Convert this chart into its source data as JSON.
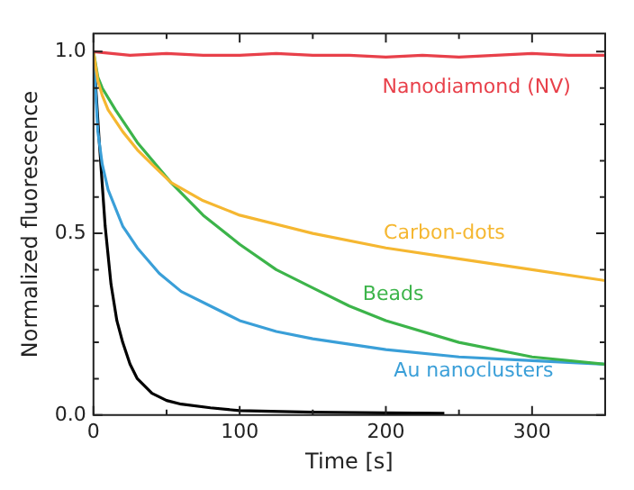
{
  "chart_data": {
    "type": "line",
    "xlabel": "Time [s]",
    "ylabel": "Normalized fluorescence",
    "xlim": [
      0,
      350
    ],
    "ylim": [
      0,
      1.05
    ],
    "xticks": [
      0,
      {
        "value": 50,
        "label": null
      },
      100,
      {
        "value": 150,
        "label": null
      },
      200,
      {
        "value": 250,
        "label": null
      },
      300
    ],
    "yticks": [
      {
        "value": 0,
        "label": "0.0"
      },
      {
        "value": 0.1,
        "label": null
      },
      {
        "value": 0.2,
        "label": null
      },
      {
        "value": 0.3,
        "label": null
      },
      {
        "value": 0.4,
        "label": null
      },
      0.5,
      {
        "value": 0.6,
        "label": null
      },
      {
        "value": 0.7,
        "label": null
      },
      {
        "value": 0.8,
        "label": null
      },
      {
        "value": 0.9,
        "label": null
      },
      {
        "value": 1,
        "label": "1.0"
      }
    ],
    "grid": false,
    "legend": false,
    "marker": "none",
    "line_style": "solid",
    "series": [
      {
        "name": "Nanodiamond (NV)",
        "color": "#e8404a",
        "x": [
          0,
          25,
          50,
          75,
          100,
          125,
          150,
          175,
          200,
          225,
          250,
          275,
          300,
          325,
          350
        ],
        "values": [
          1.0,
          0.99,
          0.995,
          0.99,
          0.99,
          0.995,
          0.99,
          0.99,
          0.985,
          0.99,
          0.985,
          0.99,
          0.995,
          0.99,
          0.99
        ]
      },
      {
        "name": "Carbon-dots",
        "color": "#f5b731",
        "x": [
          0,
          3,
          6,
          10,
          20,
          30,
          40,
          53,
          75,
          100,
          150,
          200,
          250,
          300,
          350
        ],
        "values": [
          1.0,
          0.92,
          0.88,
          0.84,
          0.78,
          0.73,
          0.69,
          0.64,
          0.59,
          0.55,
          0.5,
          0.46,
          0.43,
          0.4,
          0.37
        ]
      },
      {
        "name": "Beads",
        "color": "#3cb44a",
        "x": [
          0,
          3,
          6,
          15,
          30,
          53,
          75,
          100,
          125,
          150,
          175,
          200,
          250,
          300,
          350
        ],
        "values": [
          1.0,
          0.93,
          0.9,
          0.84,
          0.75,
          0.64,
          0.55,
          0.47,
          0.4,
          0.35,
          0.3,
          0.26,
          0.2,
          0.16,
          0.14
        ]
      },
      {
        "name": "Au nanoclusters",
        "color": "#3a9fd8",
        "x": [
          0,
          3,
          6,
          10,
          20,
          30,
          45,
          60,
          80,
          100,
          125,
          150,
          200,
          250,
          300,
          350
        ],
        "values": [
          1.0,
          0.78,
          0.69,
          0.62,
          0.52,
          0.46,
          0.39,
          0.34,
          0.3,
          0.26,
          0.23,
          0.21,
          0.18,
          0.16,
          0.15,
          0.14
        ]
      },
      {
        "color": "#000000",
        "x": [
          0,
          4,
          8,
          12,
          16,
          20,
          25,
          30,
          40,
          50,
          60,
          80,
          100,
          150,
          200,
          240
        ],
        "values": [
          1.0,
          0.75,
          0.52,
          0.36,
          0.26,
          0.2,
          0.14,
          0.1,
          0.06,
          0.04,
          0.03,
          0.02,
          0.012,
          0.008,
          0.006,
          0.005
        ]
      }
    ]
  }
}
